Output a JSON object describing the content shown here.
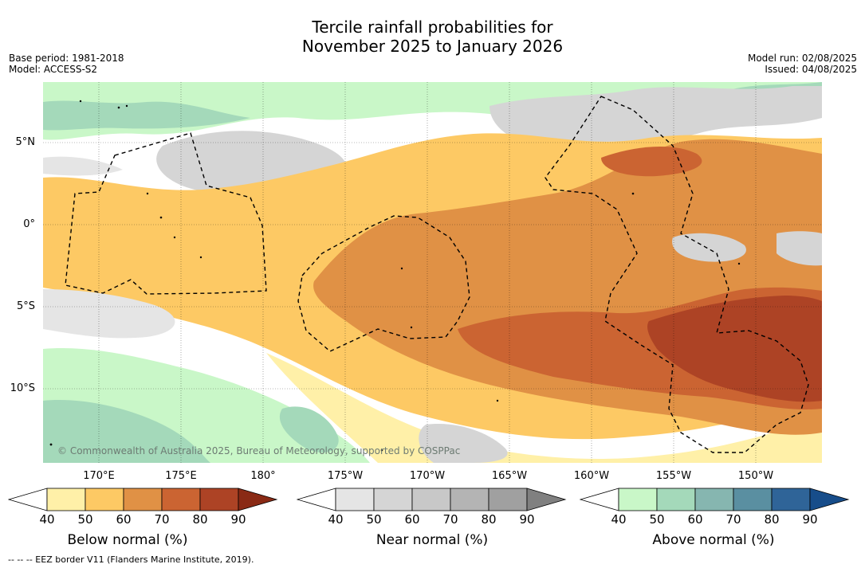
{
  "title_line1": "Tercile rainfall probabilities for",
  "title_line2": "November 2025 to January 2026",
  "left_meta": {
    "base_period": "Base period: 1981-2018",
    "model": "Model: ACCESS-S2"
  },
  "right_meta": {
    "model_run": "Model run: 02/08/2025",
    "issued": "Issued: 04/08/2025"
  },
  "lat_labels": [
    "5°N",
    "0°",
    "5°S",
    "10°S"
  ],
  "lon_labels": [
    "170°E",
    "175°E",
    "180°",
    "175°W",
    "170°W",
    "165°W",
    "160°W",
    "155°W",
    "150°W"
  ],
  "copyright": "© Commonwealth of Australia 2025, Bureau of Meteorology, supported by COSPPac",
  "colorbars": [
    {
      "title": "Below normal (%)",
      "ticks": [
        "40",
        "50",
        "60",
        "70",
        "80",
        "90"
      ],
      "colors": [
        "#fff0a8",
        "#fdc964",
        "#e09145",
        "#cb6432",
        "#ad4325",
        "#8a2a15"
      ]
    },
    {
      "title": "Near normal (%)",
      "ticks": [
        "40",
        "50",
        "60",
        "70",
        "80",
        "90"
      ],
      "colors": [
        "#e5e5e5",
        "#d5d5d5",
        "#c8c8c8",
        "#b4b4b4",
        "#a0a0a0",
        "#808080"
      ]
    },
    {
      "title": "Above normal (%)",
      "ticks": [
        "40",
        "50",
        "60",
        "70",
        "80",
        "90"
      ],
      "colors": [
        "#c9f7c8",
        "#a4d9ba",
        "#86b6b0",
        "#5a8fa1",
        "#2f6498",
        "#174d8a"
      ]
    }
  ],
  "eez_note": "--  --  -- EEZ border V11 (Flanders Marine Institute, 2019)."
}
